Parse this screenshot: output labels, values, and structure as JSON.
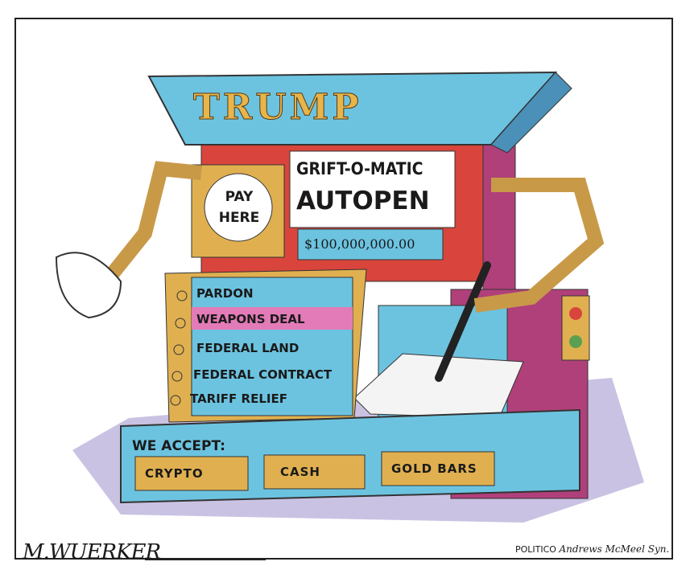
{
  "cartoon": {
    "marquee": "TRUMP",
    "pay_sign": "PAY HERE",
    "machine_name_line1": "GRIFT-O-MATIC",
    "machine_name_line2": "AUTOPEN",
    "price": "$100,000,000.00",
    "menu_items": [
      "PARDON",
      "WEAPONS DEAL",
      "FEDERAL LAND",
      "FEDERAL CONTRACT",
      "TARIFF RELIEF"
    ],
    "highlighted_item": "WEAPONS DEAL",
    "accept_label": "WE ACCEPT:",
    "payment_methods": [
      "CRYPTO",
      "CASH",
      "GOLD BARS"
    ],
    "signature": "M.WUERKER",
    "credit_publisher": "POLITICO",
    "credit_syndicate": "Andrews McMeel Syn."
  },
  "colors": {
    "blue": "#6cc3e0",
    "gold": "#e0b050",
    "red": "#d9453c",
    "magenta": "#b0407a",
    "pink": "#e27bb8",
    "purple_shadow": "#a79ad0"
  }
}
